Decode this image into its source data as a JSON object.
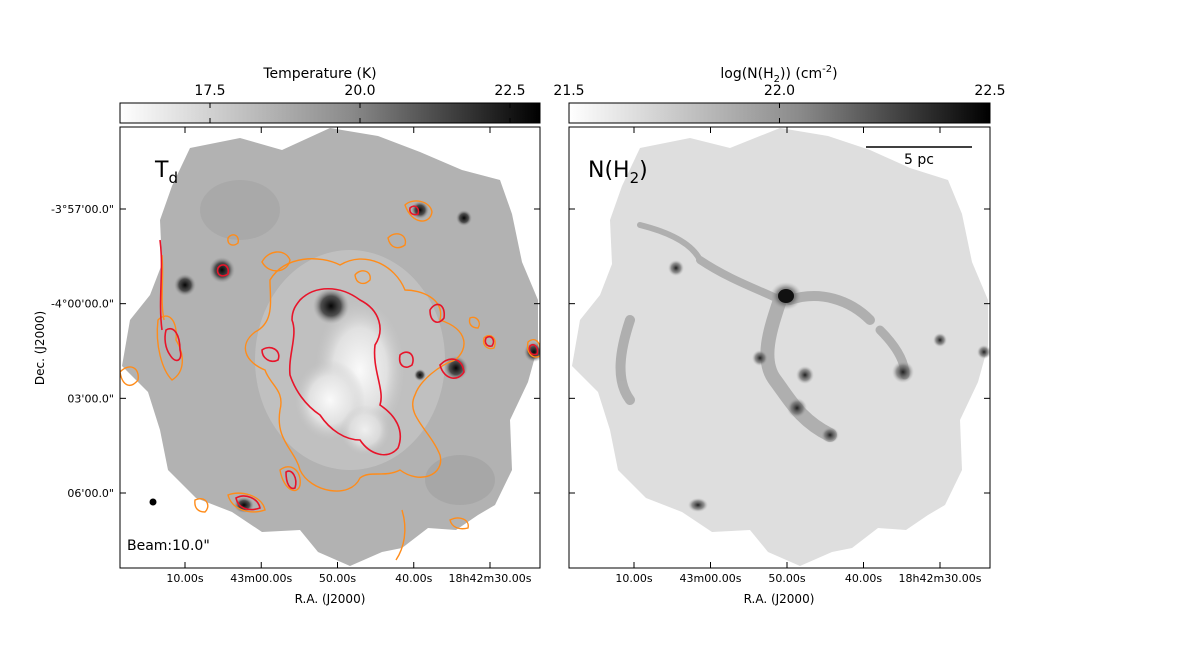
{
  "chart_data": [
    {
      "type": "heatmap",
      "panel_label": "T",
      "panel_label_sub": "d",
      "colorbar": {
        "label": "Temperature (K)",
        "ticks": [
          17.5,
          20.0,
          22.5
        ],
        "tick_labels": [
          "17.5",
          "20.0",
          "22.5"
        ],
        "range": [
          16.0,
          23.0
        ],
        "colormap": "gray_r"
      },
      "xlabel": "R.A. (J2000)",
      "ylabel": "Dec. (J2000)",
      "xticks": [
        "10.00s",
        "43m00.00s",
        "50.00s",
        "40.00s",
        "18h42m30.00s"
      ],
      "yticks": [
        "-3°57'00.0\"",
        "-4°00'00.0\"",
        "03'00.0\"",
        "06'00.0\""
      ],
      "beam_label": "Beam:10.0\"",
      "contour_colors": [
        "#ff8c1a",
        "#e8142a"
      ]
    },
    {
      "type": "heatmap",
      "panel_label": "N(H",
      "panel_label_sub": "2",
      "panel_label_end": ")",
      "colorbar": {
        "label_main": "log(N(H",
        "label_sub": "2",
        "label_end": ")) (cm",
        "label_sup": "-2",
        "label_close": ")",
        "ticks": [
          21.5,
          22.0,
          22.5
        ],
        "tick_labels": [
          "21.5",
          "22.0",
          "22.5"
        ],
        "range": [
          21.5,
          22.5
        ],
        "colormap": "gray_r"
      },
      "xlabel": "R.A. (J2000)",
      "xticks": [
        "10.00s",
        "43m00.00s",
        "50.00s",
        "40.00s",
        "18h42m30.00s"
      ],
      "scalebar_label": "5 pc"
    }
  ]
}
